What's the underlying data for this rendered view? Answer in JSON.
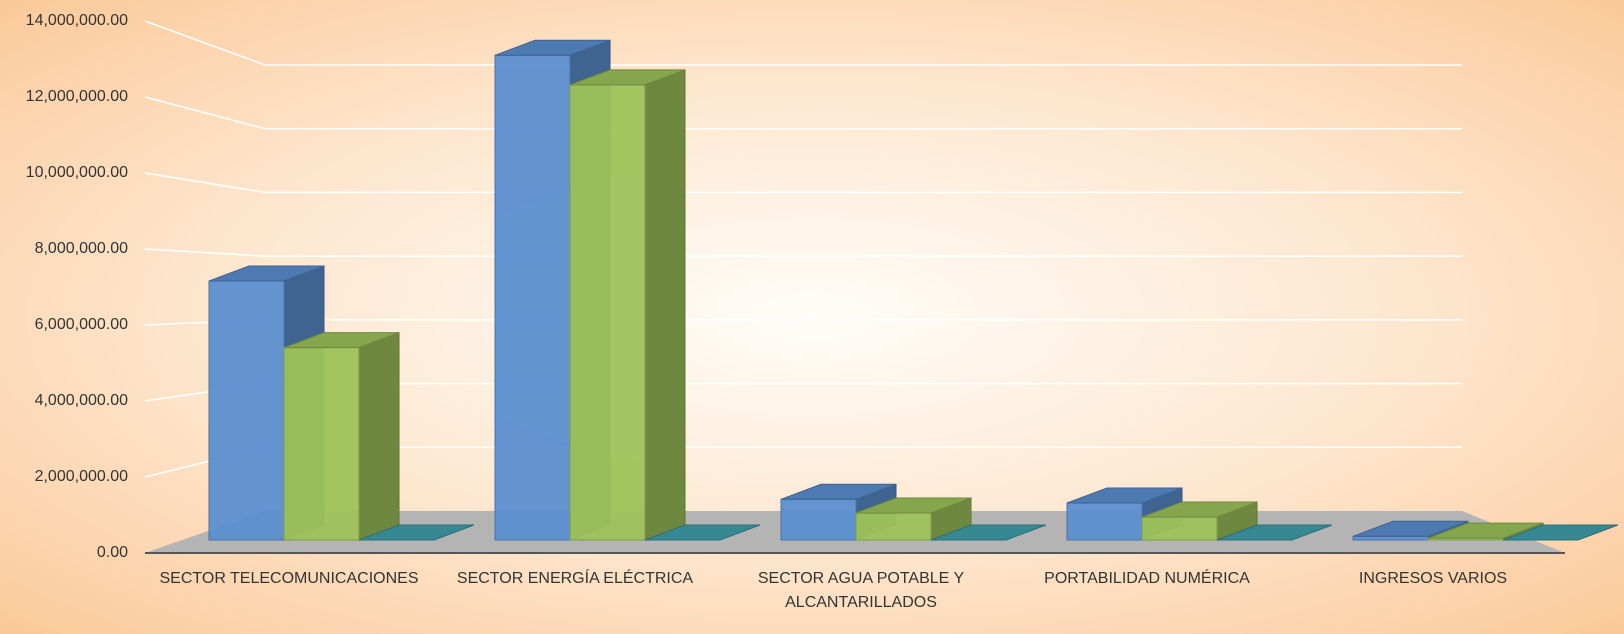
{
  "chart_data": {
    "type": "bar3d",
    "categories": [
      "SECTOR TELECOMUNICACIONES",
      "SECTOR ENERGÍA ELÉCTRICA",
      "SECTOR AGUA POTABLE Y ALCANTARILLADOS",
      "PORTABILIDAD NUMÉRICA",
      "INGRESOS VARIOS"
    ],
    "series": [
      {
        "color": "#5b8fd0",
        "values": [
          7000000,
          13100000,
          1100000,
          1000000,
          100000
        ]
      },
      {
        "color": "#9dc35a",
        "values": [
          5200000,
          12300000,
          730000,
          620000,
          50000
        ]
      },
      {
        "color": "#3fa0ad",
        "values": [
          0,
          0,
          0,
          0,
          0
        ]
      }
    ],
    "ylim": [
      0,
      14000000
    ],
    "yticks": [
      {
        "value": 0,
        "label": "0.00"
      },
      {
        "value": 2000000,
        "label": "2,000,000.00"
      },
      {
        "value": 4000000,
        "label": "4,000,000.00"
      },
      {
        "value": 6000000,
        "label": "6,000,000.00"
      },
      {
        "value": 8000000,
        "label": "8,000,000.00"
      },
      {
        "value": 10000000,
        "label": "10,000,000.00"
      },
      {
        "value": 12000000,
        "label": "12,000,000.00"
      },
      {
        "value": 14000000,
        "label": "14,000,000.00"
      }
    ],
    "grid": true
  }
}
